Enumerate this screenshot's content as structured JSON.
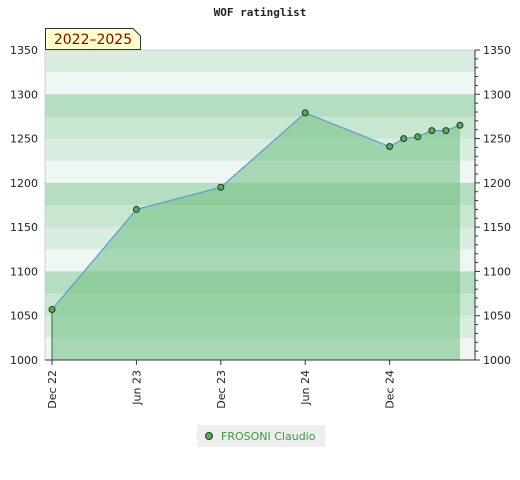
{
  "chart_data": {
    "type": "area",
    "title": "WOF ratinglist",
    "range_label": "2022–2025",
    "xlabel": "",
    "ylabel": "",
    "ylim": [
      1000,
      1350
    ],
    "yticks": [
      1000,
      1050,
      1100,
      1150,
      1200,
      1250,
      1300,
      1350
    ],
    "x_ticks": [
      "Dec 22",
      "Jun 23",
      "Dec 23",
      "Jun 24",
      "Dec 24"
    ],
    "x_tick_months": [
      0,
      6,
      12,
      18,
      24
    ],
    "grid": "horizontal-bands",
    "legend_position": "bottom",
    "series": [
      {
        "name": "FROSONI Claudio",
        "x_months": [
          0,
          6,
          12,
          18,
          24,
          25,
          26,
          27,
          28,
          29
        ],
        "values": [
          1057,
          1170,
          1195,
          1279,
          1241,
          1250,
          1252,
          1259,
          1259,
          1265
        ]
      }
    ],
    "colors": {
      "line": "#5b9bd5",
      "fill": "#6fbf7f",
      "marker": "#5aa85e",
      "marker_edge": "#1d3d1d",
      "badge_bg": "#ffffcc",
      "badge_text": "#8b0000"
    }
  }
}
